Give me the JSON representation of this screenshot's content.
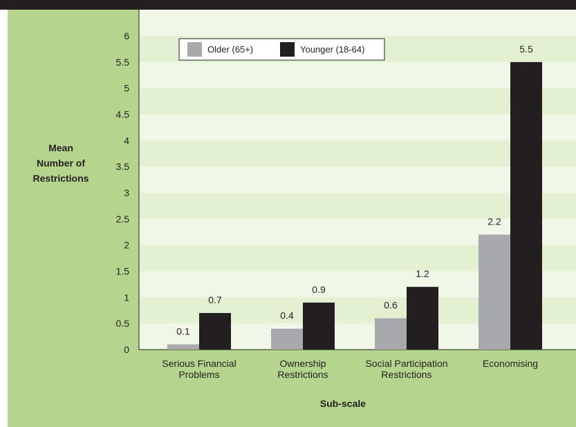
{
  "chart_data": {
    "type": "bar",
    "categories": [
      [
        "Serious Financial",
        "Problems"
      ],
      [
        "Ownership",
        "Restrictions"
      ],
      [
        "Social Participation",
        "Restrictions"
      ],
      [
        "Economising"
      ]
    ],
    "series": [
      {
        "name": "Older (65+)",
        "color": "#a7a9ac",
        "values": [
          0.1,
          0.4,
          0.6,
          2.2
        ]
      },
      {
        "name": "Younger (18-64)",
        "color": "#231f20",
        "values": [
          0.7,
          0.9,
          1.2,
          5.5
        ]
      }
    ],
    "ylabel": [
      "Mean",
      "Number of",
      "Restrictions"
    ],
    "xlabel": "Sub-scale",
    "ylim": [
      0,
      6
    ],
    "yticks": [
      0,
      0.5,
      1,
      1.5,
      2,
      2.5,
      3,
      3.5,
      4,
      4.5,
      5,
      5.5,
      6
    ],
    "grid": true,
    "legend_position": "top-left",
    "colors": {
      "panel_background": "#b5d58e",
      "plot_stripe_light": "#f1f7e7",
      "plot_stripe_dark": "#e3f0d1",
      "header_bar": "#231f20",
      "legend_background": "#ffffff"
    }
  }
}
